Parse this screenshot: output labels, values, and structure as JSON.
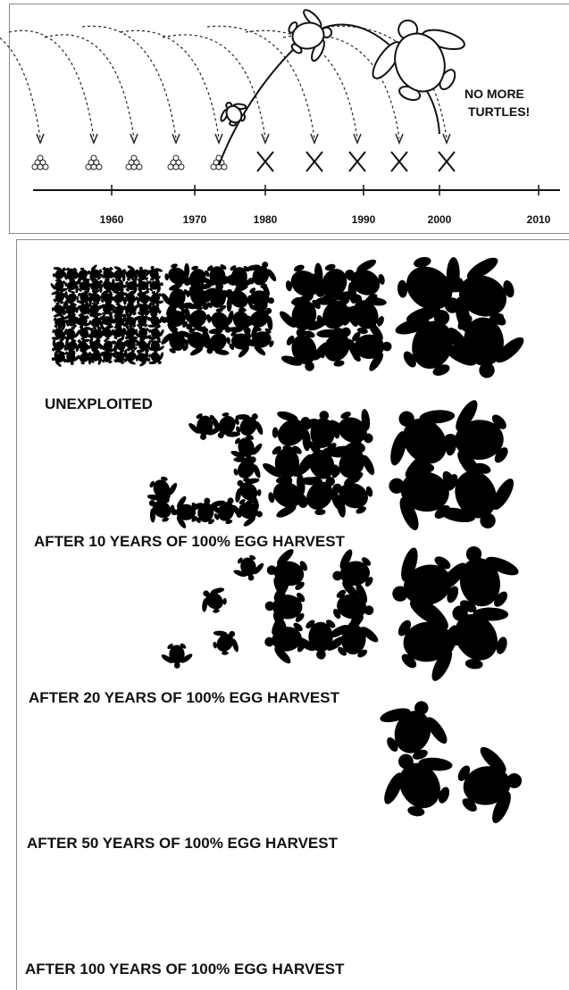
{
  "timeline": {
    "annotation": [
      "NO MORE",
      "TURTLES!"
    ],
    "axis_labels": [
      1960,
      1970,
      1980,
      1990,
      2000,
      2010
    ]
  },
  "panels": [
    {
      "label": "UNEXPLOITED"
    },
    {
      "label": "AFTER 10 YEARS OF 100% EGG HARVEST"
    },
    {
      "label": "AFTER 20 YEARS OF 100% EGG HARVEST"
    },
    {
      "label": "AFTER 50 YEARS OF 100% EGG HARVEST"
    },
    {
      "label": "AFTER 100 YEARS OF 100% EGG HARVEST"
    }
  ]
}
